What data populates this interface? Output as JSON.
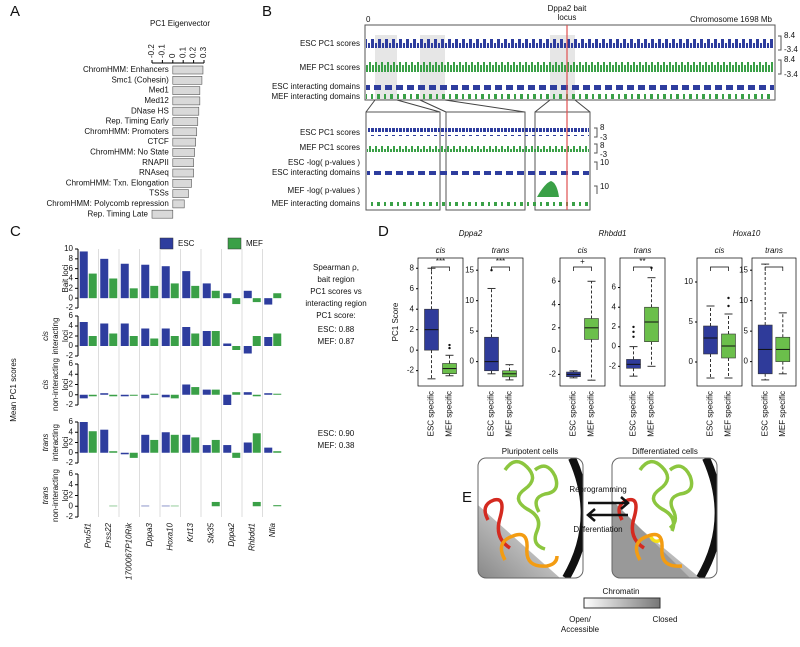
{
  "panels": [
    "A",
    "B",
    "C",
    "D",
    "E"
  ],
  "genome_browser": {
    "bait_label_lines": [
      "Dppa2 bait",
      "locus"
    ],
    "start": 0,
    "chromosome": "Chromosome 16",
    "end": "98 Mb",
    "tracks": [
      "ESC PC1 scores",
      "MEF PC1 scores",
      "ESC interacting domains",
      "MEF interacting domains"
    ],
    "track_scales": [
      8.4,
      -3.4,
      8.4,
      -3.4
    ],
    "zoom_tracks": [
      "ESC PC1 scores",
      "MEF PC1 scores",
      "ESC -log( p-values )",
      "ESC interacting domains",
      "MEF -log( p-values )",
      "MEF interacting domains"
    ],
    "zoom_scales": [
      8,
      -3,
      8,
      -3,
      10,
      10
    ]
  },
  "diagram": {
    "left_title": "Pluripotent cells",
    "right_title": "Differentiated cells",
    "forward": "Reprogramming",
    "backward": "Differentiation",
    "legend_title": "Chromatin",
    "open_lines": [
      "Open/",
      "Accessible"
    ],
    "closed": "Closed"
  },
  "chart_data": [
    {
      "type": "hbar",
      "title": "PC1 Eigenvector",
      "categories": [
        "ChromHMM: Enhancers",
        "Smc1 (Cohesin)",
        "Med1",
        "Med12",
        "DNase HS",
        "Rep. Timing Early",
        "ChromHMM: Promoters",
        "CTCF",
        "ChromHMM: No State",
        "RNAPII",
        "RNAseq",
        "ChromHMM: Txn. Elongation",
        "TSSs",
        "ChromHMM: Polycomb repression",
        "Rep. Timing Late"
      ],
      "values": [
        0.29,
        0.28,
        0.26,
        0.26,
        0.25,
        0.24,
        0.23,
        0.22,
        0.21,
        0.2,
        0.2,
        0.18,
        0.15,
        0.11,
        -0.2
      ],
      "color": "#d9d9d9",
      "xlim": [
        -0.2,
        0.3
      ],
      "xticks": [
        -0.2,
        -0.1,
        0,
        0.1,
        0.2,
        0.3
      ]
    },
    {
      "type": "grouped_bar",
      "ylabel": "Mean PC1 scores",
      "categories": [
        "Pou5f1",
        "Prss22",
        "1700067P10Rik",
        "Dppa3",
        "Hoxa10",
        "Krt13",
        "Stk35",
        "Dppa2",
        "Rhbdd1",
        "Nfia"
      ],
      "series": [
        {
          "name": "ESC",
          "color": "#2e3d9e"
        },
        {
          "name": "MEF",
          "color": "#3aa047"
        }
      ],
      "subplots": [
        {
          "label_lines": [
            "Bait loci"
          ],
          "ylim": [
            -2,
            10
          ],
          "yticks": [
            -2,
            0,
            2,
            4,
            6,
            8,
            10
          ],
          "values": [
            [
              9.5,
              8,
              7,
              6.8,
              6.5,
              5.5,
              3,
              1,
              1.5,
              -1.3
            ],
            [
              5,
              4,
              2,
              2.5,
              3,
              2.5,
              1.5,
              -1.2,
              -0.8,
              1
            ]
          ]
        },
        {
          "label_lines": [
            "cis",
            "interacting",
            "loci"
          ],
          "ylim": [
            -2,
            6
          ],
          "yticks": [
            -2,
            0,
            2,
            4,
            6
          ],
          "values": [
            [
              4.8,
              4.5,
              4.5,
              3.5,
              3.5,
              3.8,
              3,
              0.5,
              -1.5,
              1.8
            ],
            [
              2,
              2.5,
              2,
              1.5,
              2,
              2.5,
              3,
              -0.8,
              2,
              2.5
            ]
          ]
        },
        {
          "label_lines": [
            "cis",
            "non-interacting",
            "loci"
          ],
          "ylim": [
            -2,
            6
          ],
          "yticks": [
            -2,
            0,
            2,
            4,
            6
          ],
          "values": [
            [
              -0.7,
              0.3,
              -0.3,
              -0.7,
              -0.5,
              2,
              1,
              -2,
              0.5,
              0.3
            ],
            [
              -0.3,
              -0.3,
              -0.2,
              0.2,
              -0.7,
              1.5,
              1,
              0.5,
              -0.3,
              0.2
            ]
          ]
        },
        {
          "label_lines": [
            "trans",
            "interacting",
            "loci"
          ],
          "ylim": [
            -2,
            6
          ],
          "yticks": [
            -2,
            0,
            2,
            4,
            6
          ],
          "values": [
            [
              6,
              4.5,
              -0.3,
              3.5,
              4,
              3.5,
              1.5,
              1.5,
              2,
              1
            ],
            [
              4.2,
              0.3,
              -1,
              2.5,
              3.5,
              3,
              2.5,
              -1,
              3.8,
              0.3
            ]
          ]
        },
        {
          "label_lines": [
            "trans",
            "non-interacting",
            "loci"
          ],
          "ylim": [
            -2,
            6
          ],
          "yticks": [
            -2,
            0,
            2,
            4,
            6
          ],
          "values": [
            [
              0,
              0,
              0,
              0.1,
              0.1,
              0,
              0,
              0,
              0,
              0
            ],
            [
              0,
              0.1,
              0,
              0,
              0.1,
              0,
              0.8,
              0,
              0.8,
              0.2
            ]
          ]
        }
      ],
      "annotations": [
        [
          "Spearman ρ,",
          "bait region",
          "PC1 scores vs",
          "interacting region",
          "PC1 score:"
        ],
        [
          "ESC: 0.88",
          "MEF: 0.87"
        ],
        [
          "ESC: 0.90",
          "MEF: 0.38"
        ]
      ]
    },
    {
      "type": "box",
      "ylabel": "PC1 Score",
      "groups": [
        "ESC specific",
        "MEF specific"
      ],
      "colors": [
        "#2f3b9a",
        "#6bbf4b"
      ],
      "genes": [
        {
          "title": "Dppa2",
          "panels": [
            {
              "subtitle": "cis",
              "significance": "***",
              "ylim": [
                -3.5,
                9
              ],
              "yticks": [
                -2,
                0,
                2,
                4,
                6,
                8
              ],
              "boxes": [
                {
                  "whislo": -2.8,
                  "q1": 0,
                  "med": 2,
                  "q3": 4,
                  "whishi": 8,
                  "fliers": []
                },
                {
                  "whislo": -2.5,
                  "q1": -2.3,
                  "med": -1.8,
                  "q3": -1.3,
                  "whishi": -0.5,
                  "fliers": [
                    0.2,
                    0.5
                  ]
                }
              ]
            },
            {
              "subtitle": "trans",
              "significance": "***",
              "ylim": [
                -4,
                17
              ],
              "yticks": [
                0,
                5,
                10,
                15
              ],
              "boxes": [
                {
                  "whislo": -2,
                  "q1": -1.5,
                  "med": 0,
                  "q3": 4,
                  "whishi": 12,
                  "fliers": [
                    15
                  ]
                },
                {
                  "whislo": -3,
                  "q1": -2.5,
                  "med": -2,
                  "q3": -1.5,
                  "whishi": -0.5,
                  "fliers": []
                }
              ]
            }
          ]
        },
        {
          "title": "Rhbdd1",
          "panels": [
            {
              "subtitle": "cis",
              "significance": "+",
              "ylim": [
                -3,
                8
              ],
              "yticks": [
                -2,
                0,
                2,
                4,
                6
              ],
              "boxes": [
                {
                  "whislo": -2.3,
                  "q1": -2.2,
                  "med": -2,
                  "q3": -1.8,
                  "whishi": -1.7,
                  "fliers": []
                },
                {
                  "whislo": -2.5,
                  "q1": 1,
                  "med": 2,
                  "q3": 2.8,
                  "whishi": 6,
                  "fliers": []
                }
              ]
            },
            {
              "subtitle": "trans",
              "significance": "**",
              "ylim": [
                -4,
                9
              ],
              "yticks": [
                -2,
                0,
                2,
                4,
                6
              ],
              "boxes": [
                {
                  "whislo": -3,
                  "q1": -2.2,
                  "med": -1.8,
                  "q3": -1.3,
                  "whishi": 0,
                  "fliers": [
                    1,
                    1.5,
                    2
                  ]
                },
                {
                  "whislo": -2,
                  "q1": 0.5,
                  "med": 2.5,
                  "q3": 4,
                  "whishi": 7,
                  "fliers": [
                    8
                  ]
                }
              ]
            }
          ]
        },
        {
          "title": "Hoxa10",
          "panels": [
            {
              "subtitle": "cis",
              "ylim": [
                -3,
                13
              ],
              "yticks": [
                0,
                5,
                10
              ],
              "boxes": [
                {
                  "whislo": -2,
                  "q1": 1,
                  "med": 3,
                  "q3": 4.5,
                  "whishi": 7,
                  "fliers": []
                },
                {
                  "whislo": -2,
                  "q1": 0.5,
                  "med": 2,
                  "q3": 3.5,
                  "whishi": 6,
                  "fliers": [
                    7,
                    8
                  ]
                }
              ]
            },
            {
              "subtitle": "trans",
              "ylim": [
                -4,
                17
              ],
              "yticks": [
                0,
                5,
                10,
                15
              ],
              "boxes": [
                {
                  "whislo": -3,
                  "q1": -2,
                  "med": 2,
                  "q3": 6,
                  "whishi": 16,
                  "fliers": []
                },
                {
                  "whislo": -2,
                  "q1": 0,
                  "med": 2,
                  "q3": 4,
                  "whishi": 8,
                  "fliers": []
                }
              ]
            }
          ]
        }
      ]
    }
  ]
}
